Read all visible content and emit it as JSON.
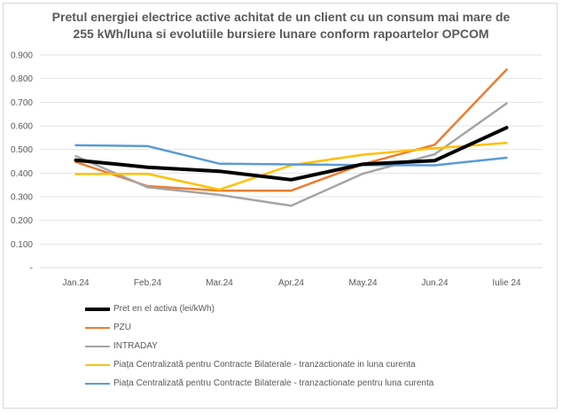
{
  "chart_data": {
    "type": "line",
    "title_lines": [
      "Pretul energiei electrice active achitat de un client cu un consum mai mare de",
      "255  kWh/luna si evolutiile bursiere lunare conform rapoartelor OPCOM"
    ],
    "categories": [
      "Jan.24",
      "Feb.24",
      "Mar.24",
      "Apr.24",
      "May.24",
      "Jun.24",
      "Iulie 24"
    ],
    "ylim": [
      0,
      0.9
    ],
    "yticks": [
      "-",
      "0.100",
      "0.200",
      "0.300",
      "0.400",
      "0.500",
      "0.600",
      "0.700",
      "0.800",
      "0.900"
    ],
    "grid": true,
    "legend_position": "bottom",
    "series": [
      {
        "name": "Pret en el activa (lei/kWh)",
        "color": "#000000",
        "width": 4,
        "values": [
          0.455,
          0.425,
          0.408,
          0.372,
          0.438,
          0.453,
          0.592
        ]
      },
      {
        "name": "PZU",
        "color": "#ed7d31",
        "width": 2.5,
        "values": [
          0.447,
          0.345,
          0.326,
          0.326,
          0.438,
          0.52,
          0.838
        ]
      },
      {
        "name": "INTRADAY",
        "color": "#a5a5a5",
        "width": 2.5,
        "values": [
          0.472,
          0.34,
          0.308,
          0.262,
          0.398,
          0.48,
          0.695
        ]
      },
      {
        "name": "Piața Centralizată pentru Contracte Bilaterale - tranzactionate in luna curenta",
        "color": "#ffc000",
        "width": 2.5,
        "values": [
          0.396,
          0.397,
          0.33,
          0.433,
          0.478,
          0.505,
          0.528
        ]
      },
      {
        "name": "Piața Centralizată pentru Contracte Bilaterale - tranzactionate pentru luna curenta",
        "color": "#5b9bd5",
        "width": 2.5,
        "values": [
          0.518,
          0.514,
          0.44,
          0.437,
          0.434,
          0.433,
          0.465
        ]
      }
    ]
  }
}
